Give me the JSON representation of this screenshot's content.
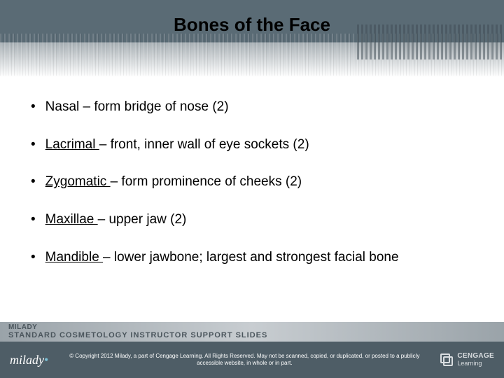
{
  "title": "Bones of the Face",
  "bullets": [
    {
      "term": "Nasal",
      "desc": " – form bridge of nose (2)",
      "link": false
    },
    {
      "term": "Lacrimal ",
      "desc": "– front, inner wall of eye sockets (2)",
      "link": true
    },
    {
      "term": "Zygomatic ",
      "desc": "– form prominence of cheeks (2)",
      "link": true
    },
    {
      "term": "Maxillae ",
      "desc": "– upper jaw (2)",
      "link": true
    },
    {
      "term": "Mandible ",
      "desc": "– lower jawbone; largest and strongest facial bone",
      "link": true
    }
  ],
  "footer_band": {
    "line1": "MILADY",
    "line2": "STANDARD COSMETOLOGY INSTRUCTOR SUPPORT SLIDES"
  },
  "bottom": {
    "logo": "milady",
    "copyright": "© Copyright 2012 Milady, a part of Cengage Learning. All Rights Reserved. May not be scanned, copied, or duplicated, or posted to a publicly accessible website, in whole or in part.",
    "cengage1": "CENGAGE",
    "cengage2": "Learning"
  },
  "colors": {
    "header_bg": "#5a6b75",
    "bottom_bg": "#4e5d66",
    "accent": "#7bbfd4"
  }
}
